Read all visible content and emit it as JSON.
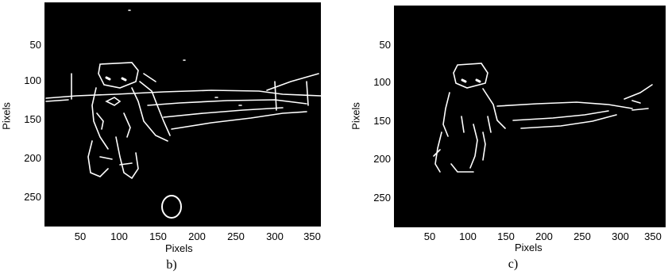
{
  "panels": [
    {
      "caption": "b)",
      "xlabel": "Pixels",
      "ylabel": "Pixels",
      "xticks": [
        "50",
        "100",
        "150",
        "200",
        "250",
        "300",
        "350"
      ],
      "yticks": [
        "50",
        "100",
        "150",
        "200",
        "250"
      ]
    },
    {
      "caption": "c)",
      "xlabel": "Pixels",
      "ylabel": "Pixels",
      "xticks": [
        "50",
        "100",
        "150",
        "200",
        "250",
        "300",
        "350"
      ],
      "yticks": [
        "50",
        "100",
        "150",
        "200",
        "250"
      ]
    }
  ],
  "colors": {
    "background": "#000000",
    "edges": "#ffffff"
  }
}
